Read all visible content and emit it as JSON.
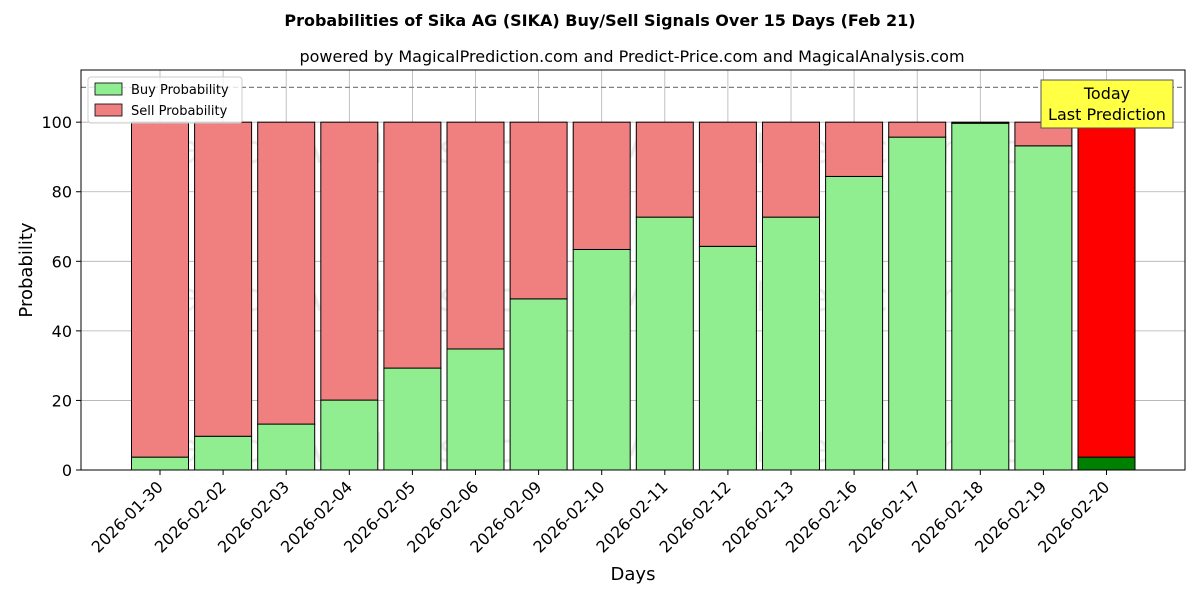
{
  "chart_data": {
    "type": "bar",
    "stacked": true,
    "title": "Probabilities of Sika AG (SIKA) Buy/Sell Signals Over 15 Days (Feb 21)",
    "subtitle": "powered by MagicalPrediction.com and Predict-Price.com and MagicalAnalysis.com",
    "xlabel": "Days",
    "ylabel": "Probability",
    "ylim": [
      0,
      115
    ],
    "yticks": [
      0,
      20,
      40,
      60,
      80,
      100
    ],
    "reference_line": 110,
    "grid": true,
    "legend_position": "top-left",
    "categories": [
      "2026-01-30",
      "2026-02-02",
      "2026-02-03",
      "2026-02-04",
      "2026-02-05",
      "2026-02-06",
      "2026-02-09",
      "2026-02-10",
      "2026-02-11",
      "2026-02-12",
      "2026-02-13",
      "2026-02-16",
      "2026-02-17",
      "2026-02-18",
      "2026-02-19",
      "2026-02-20"
    ],
    "series": [
      {
        "name": "Buy Probability",
        "color": "#90ee90",
        "values": [
          3.7,
          9.7,
          13.2,
          20.1,
          29.3,
          34.8,
          49.2,
          63.4,
          72.7,
          64.3,
          72.7,
          84.4,
          95.7,
          99.7,
          93.2,
          3.7
        ]
      },
      {
        "name": "Sell Probability",
        "color": "#f08080",
        "values": [
          96.3,
          90.3,
          86.8,
          79.9,
          70.7,
          65.2,
          50.8,
          36.6,
          27.3,
          35.7,
          27.3,
          15.6,
          4.3,
          0.3,
          6.8,
          96.3
        ]
      }
    ],
    "highlight": {
      "category": "2026-02-20",
      "buy_color": "#008000",
      "sell_color": "#ff0000"
    },
    "annotation": {
      "lines": [
        "Today",
        "Last Prediction"
      ],
      "background": "#ffff44"
    },
    "watermarks": [
      "MagicalAnalysis.com",
      "MagicalPrediction.com"
    ]
  }
}
